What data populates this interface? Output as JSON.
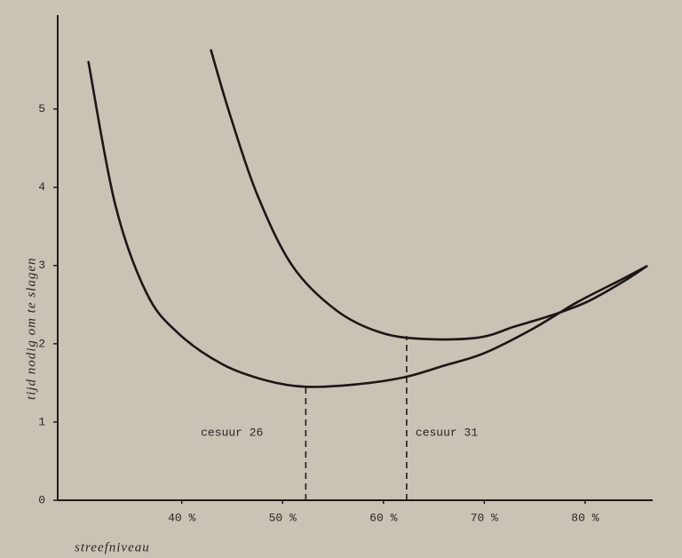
{
  "chart_data": {
    "type": "line",
    "x_label": "streefniveau",
    "y_label": "tijd nodig om te slagen",
    "xlim": [
      27.7,
      86.7
    ],
    "ylim": [
      0,
      6.2
    ],
    "xticks": [
      {
        "value": 40,
        "label": "40 %"
      },
      {
        "value": 50,
        "label": "50 %"
      },
      {
        "value": 60,
        "label": "60 %"
      },
      {
        "value": 70,
        "label": "70 %"
      },
      {
        "value": 80,
        "label": "80 %"
      }
    ],
    "yticks": [
      0,
      1,
      2,
      3,
      4,
      5
    ],
    "grid": false,
    "series": [
      {
        "color": "#1a1714",
        "x": [
          30.75,
          33.4,
          36.5,
          39.6,
          44.0,
          48.4,
          52.3,
          57.2,
          62.0,
          66.0,
          70.0,
          74.8,
          79.2,
          83.6,
          86.1
        ],
        "values": [
          5.6,
          3.78,
          2.65,
          2.14,
          1.74,
          1.53,
          1.45,
          1.48,
          1.57,
          1.72,
          1.88,
          2.19,
          2.53,
          2.82,
          2.99
        ]
      },
      {
        "color": "#1a1714",
        "x": [
          42.9,
          44.8,
          47.5,
          51.0,
          55.4,
          59.8,
          64.2,
          69.5,
          73.0,
          76.6,
          80.1,
          83.6,
          86.1
        ],
        "values": [
          5.75,
          4.92,
          3.9,
          2.99,
          2.42,
          2.14,
          2.06,
          2.08,
          2.22,
          2.36,
          2.53,
          2.78,
          2.99
        ]
      }
    ],
    "cutoffs": [
      {
        "label": "cesuur 26",
        "x": 52.3,
        "y": 1.5
      },
      {
        "label": "cesuur 31",
        "x": 62.3,
        "y": 2.1
      }
    ]
  }
}
